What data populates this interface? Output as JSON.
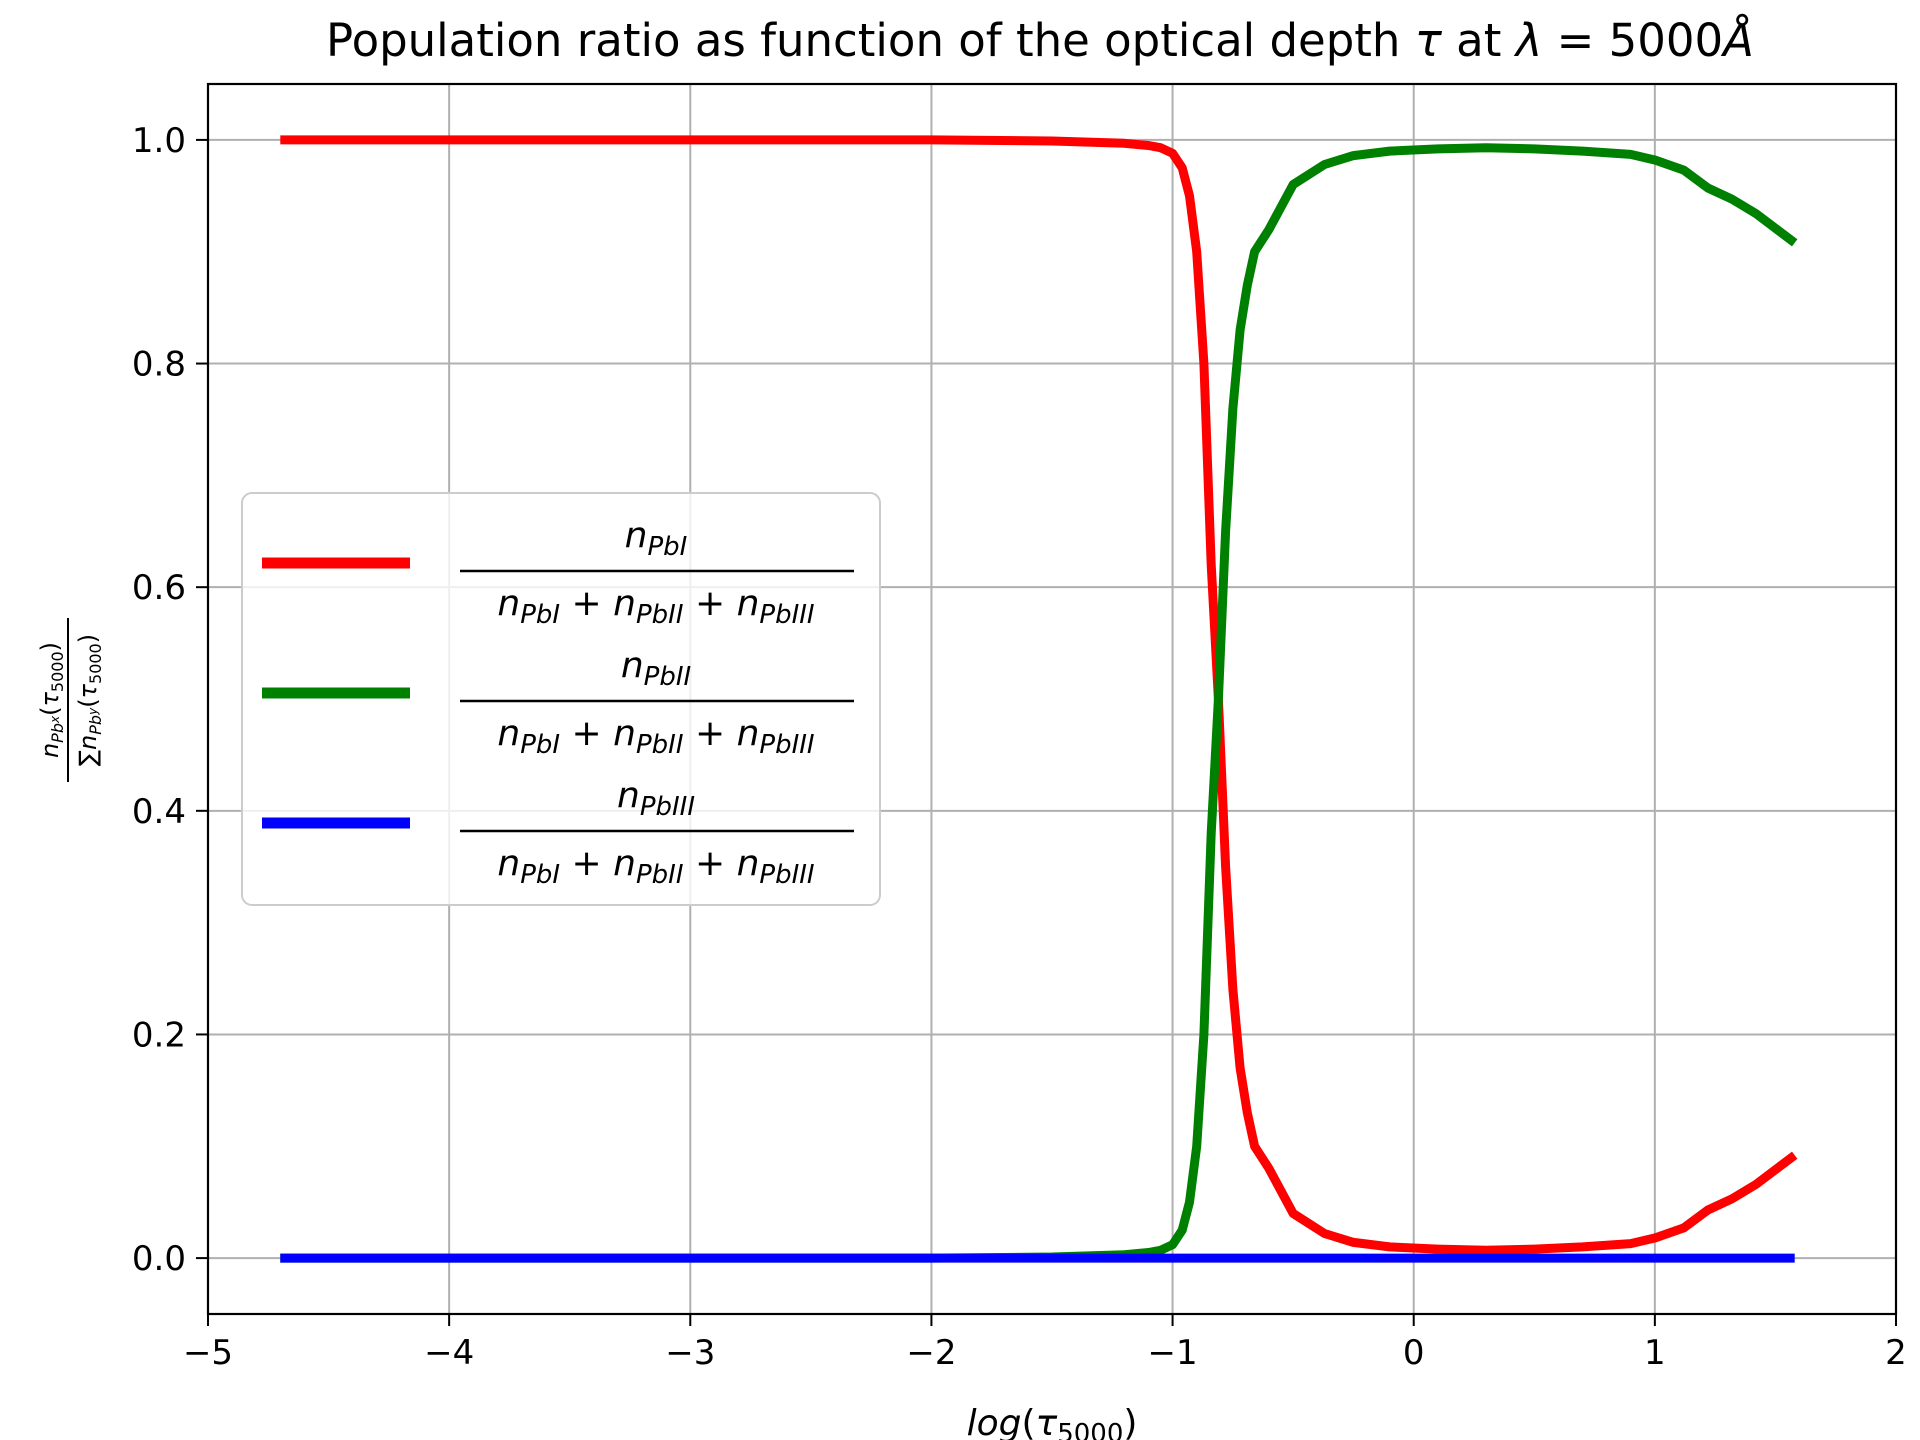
{
  "chart_data": {
    "type": "line",
    "title": "Population ratio as function of the optical depth τ at λ = 5000 Å",
    "xlabel": "log(τ5000)",
    "ylabel": "nPbx(τ5000) / ∑nPby(τ5000)",
    "xlim": [
      -5,
      2
    ],
    "ylim": [
      -0.05,
      1.05
    ],
    "x_ticks": [
      -5,
      -4,
      -3,
      -2,
      -1,
      0,
      1,
      2
    ],
    "x_tick_labels": [
      "−5",
      "−4",
      "−3",
      "−2",
      "−1",
      "0",
      "1",
      "2"
    ],
    "y_ticks": [
      0.0,
      0.2,
      0.4,
      0.6,
      0.8,
      1.0
    ],
    "y_tick_labels": [
      "0.0",
      "0.2",
      "0.4",
      "0.6",
      "0.8",
      "1.0"
    ],
    "grid": true,
    "legend_position": "center-left",
    "series": [
      {
        "name": "nPbI / (nPbI + nPbII + nPbIII)",
        "color": "#ff0000",
        "x": [
          -4.7,
          -4.0,
          -3.0,
          -2.0,
          -1.5,
          -1.2,
          -1.1,
          -1.05,
          -1.0,
          -0.96,
          -0.93,
          -0.9,
          -0.87,
          -0.84,
          -0.81,
          -0.78,
          -0.75,
          -0.72,
          -0.69,
          -0.66,
          -0.6,
          -0.5,
          -0.37,
          -0.25,
          -0.1,
          0.1,
          0.3,
          0.5,
          0.7,
          0.9,
          1.0,
          1.12,
          1.22,
          1.32,
          1.42,
          1.58
        ],
        "y": [
          1.0,
          1.0,
          1.0,
          1.0,
          0.999,
          0.997,
          0.995,
          0.993,
          0.988,
          0.975,
          0.95,
          0.9,
          0.8,
          0.62,
          0.5,
          0.35,
          0.24,
          0.17,
          0.13,
          0.1,
          0.08,
          0.04,
          0.022,
          0.014,
          0.01,
          0.008,
          0.007,
          0.008,
          0.01,
          0.013,
          0.018,
          0.027,
          0.043,
          0.053,
          0.066,
          0.092
        ]
      },
      {
        "name": "nPbII / (nPbI + nPbII + nPbIII)",
        "color": "#008000",
        "x": [
          -4.7,
          -4.0,
          -3.0,
          -2.0,
          -1.5,
          -1.2,
          -1.1,
          -1.05,
          -1.0,
          -0.96,
          -0.93,
          -0.9,
          -0.87,
          -0.84,
          -0.81,
          -0.78,
          -0.75,
          -0.72,
          -0.69,
          -0.66,
          -0.6,
          -0.5,
          -0.37,
          -0.25,
          -0.1,
          0.1,
          0.3,
          0.5,
          0.7,
          0.9,
          1.0,
          1.12,
          1.22,
          1.32,
          1.42,
          1.58
        ],
        "y": [
          0.0,
          0.0,
          0.0,
          0.0,
          0.001,
          0.003,
          0.005,
          0.007,
          0.012,
          0.025,
          0.05,
          0.1,
          0.2,
          0.38,
          0.5,
          0.65,
          0.76,
          0.83,
          0.87,
          0.9,
          0.92,
          0.96,
          0.978,
          0.986,
          0.99,
          0.992,
          0.993,
          0.992,
          0.99,
          0.987,
          0.982,
          0.973,
          0.957,
          0.947,
          0.934,
          0.908
        ]
      },
      {
        "name": "nPbIII / (nPbI + nPbII + nPbIII)",
        "color": "#0000ff",
        "x": [
          -4.7,
          -3.0,
          -1.0,
          0.0,
          1.0,
          1.58
        ],
        "y": [
          0.0,
          0.0,
          0.0,
          0.0,
          0.0,
          0.0
        ]
      }
    ],
    "legend": [
      {
        "color": "#ff0000",
        "numerator": "n",
        "numerator_sub": "PbI"
      },
      {
        "color": "#008000",
        "numerator": "n",
        "numerator_sub": "PbII"
      },
      {
        "color": "#0000ff",
        "numerator": "n",
        "numerator_sub": "PbIII"
      }
    ],
    "legend_denominator": [
      "n",
      "PbI",
      "+",
      "n",
      "PbII",
      "+",
      "n",
      "PbIII"
    ]
  }
}
